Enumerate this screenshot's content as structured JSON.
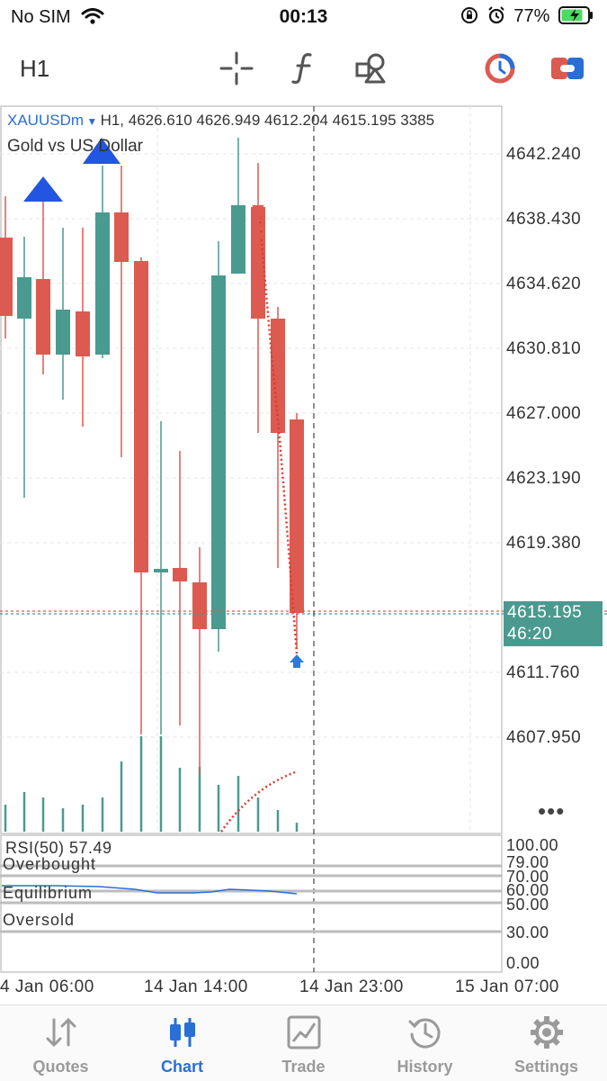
{
  "status_bar": {
    "carrier": "No SIM",
    "time": "00:13",
    "battery": "77%"
  },
  "toolbar": {
    "timeframe": "H1",
    "icons": [
      "crosshair-icon",
      "function-icon",
      "objects-icon",
      "indicator-toggle-icon",
      "account-icon"
    ]
  },
  "chart": {
    "symbol": "XAUUSDm",
    "info": "H1, 4626.610 4626.949 4612.204 4615.195 3385",
    "description": "Gold vs US Dollar",
    "price_labels": [
      "4642.240",
      "4638.430",
      "4634.620",
      "4630.810",
      "4627.000",
      "4623.190",
      "4619.380",
      "4611.760",
      "4607.950"
    ],
    "current_price": "4615.195",
    "countdown": "46:20",
    "time_labels": [
      "4 Jan 06:00",
      "14 Jan 14:00",
      "14 Jan 23:00",
      "15 Jan 07:00"
    ],
    "colors": {
      "bull": "#4a9a8f",
      "bear": "#dc5a50",
      "arrow": "#2356e0"
    }
  },
  "rsi": {
    "title": "RSI(50) 57.49",
    "levels": {
      "overbought": "Overbought",
      "equilibrium": "Equilibrium",
      "oversold": "Oversold"
    },
    "scale": [
      "100.00",
      "79.00",
      "70.00",
      "60.00",
      "50.00",
      "30.00",
      "0.00"
    ]
  },
  "tabs": [
    {
      "label": "Quotes",
      "icon": "quotes-arrows-icon"
    },
    {
      "label": "Chart",
      "icon": "candlestick-icon"
    },
    {
      "label": "Trade",
      "icon": "trade-chart-icon"
    },
    {
      "label": "History",
      "icon": "history-clock-icon"
    },
    {
      "label": "Settings",
      "icon": "settings-gear-icon"
    }
  ]
}
